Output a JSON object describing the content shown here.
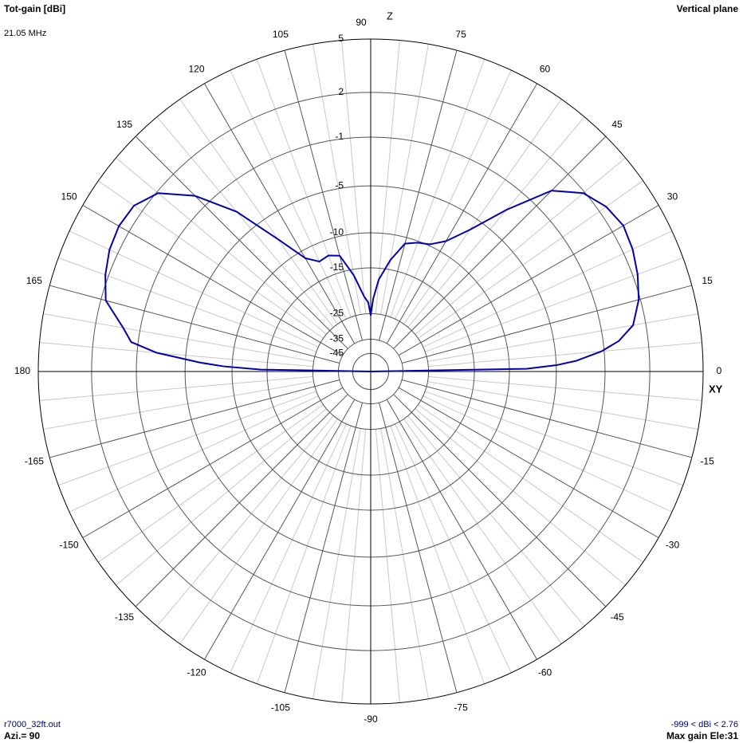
{
  "chart_data": {
    "type": "polar",
    "title": "Tot-gain [dBi]",
    "subtitle": "21.05 MHz",
    "plane": "Vertical plane",
    "axis_z": "Z",
    "axis_xy": "XY",
    "file": "r7000_32ft.out",
    "azimuth": "Azi.= 90",
    "range_text": "-999 < dBi < 2.76",
    "max_gain_text": "Max gain Ele:31",
    "scale": "arrl-log",
    "rlim": [
      -45,
      5
    ],
    "rticks": [
      5,
      2,
      -1,
      -5,
      -10,
      -15,
      -25,
      -35,
      -45
    ],
    "angle_ticks": [
      0,
      15,
      30,
      45,
      60,
      75,
      90,
      105,
      120,
      135,
      150,
      165,
      180,
      -165,
      -150,
      -135,
      -120,
      -105,
      -90,
      -75,
      -60,
      -45,
      -30,
      -15
    ],
    "minor_angle_step": 5,
    "series": [
      {
        "color": "#0000b0",
        "x": [
          0,
          1,
          2,
          3,
          5,
          7,
          10,
          15,
          20,
          25,
          30,
          35,
          40,
          45,
          50,
          55,
          60,
          65,
          70,
          75,
          80,
          85,
          88,
          90,
          92,
          95,
          100,
          105,
          110,
          115,
          120,
          125,
          130,
          135,
          140,
          145,
          150,
          155,
          160,
          165,
          170,
          173,
          175,
          177,
          178,
          179,
          180
        ],
        "values": [
          -999,
          -8,
          -4.9,
          -3.2,
          -1.2,
          0.1,
          1.2,
          1.9,
          2.3,
          2.6,
          2.76,
          2.5,
          1.9,
          0.5,
          -2.8,
          -6.2,
          -8.6,
          -9.8,
          -10.2,
          -10.8,
          -13.5,
          -17,
          -21,
          -25.5,
          -22,
          -20.5,
          -16,
          -12.5,
          -12,
          -12.3,
          -11,
          -7.4,
          -3,
          0,
          1.9,
          2.6,
          2.7,
          2.55,
          2.2,
          1.7,
          0.2,
          -0.5,
          -2.5,
          -6.4,
          -9,
          -14,
          -999
        ]
      }
    ]
  }
}
